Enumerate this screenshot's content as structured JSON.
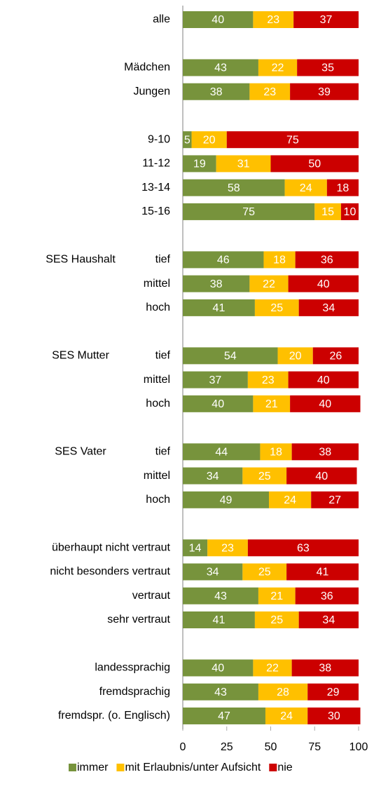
{
  "chart_data": {
    "type": "stacked_barh",
    "categories": [
      "alle",
      null,
      "Mädchen",
      "Jungen",
      null,
      "9-10",
      "11-12",
      "13-14",
      "15-16",
      null,
      "tief",
      "mittel",
      "hoch",
      null,
      "tief",
      "mittel",
      "hoch",
      null,
      "tief",
      "mittel",
      "hoch",
      null,
      "überhaupt nicht vertraut",
      "nicht besonders vertraut",
      "vertraut",
      "sehr vertraut",
      null,
      "landessprachig",
      "fremdsprachig",
      "fremdspr. (o. Englisch)"
    ],
    "group_labels": [
      null,
      null,
      null,
      null,
      null,
      null,
      null,
      null,
      null,
      null,
      "SES Haushalt",
      null,
      null,
      null,
      "SES Mutter",
      null,
      null,
      null,
      "SES Vater",
      null,
      null,
      null,
      null,
      null,
      null,
      null,
      null,
      null,
      null,
      null
    ],
    "series": [
      {
        "name": "immer",
        "color": "#77933c",
        "values": [
          40,
          null,
          43,
          38,
          null,
          5,
          19,
          58,
          75,
          null,
          46,
          38,
          41,
          null,
          54,
          37,
          40,
          null,
          44,
          34,
          49,
          null,
          14,
          34,
          43,
          41,
          null,
          40,
          43,
          47
        ]
      },
      {
        "name": "mit Erlaubnis/unter Aufsicht",
        "color": "#ffc000",
        "values": [
          23,
          null,
          22,
          23,
          null,
          20,
          31,
          24,
          15,
          null,
          18,
          22,
          25,
          null,
          20,
          23,
          21,
          null,
          18,
          25,
          24,
          null,
          23,
          25,
          21,
          25,
          null,
          22,
          28,
          24
        ]
      },
      {
        "name": "nie",
        "color": "#cc0000",
        "values": [
          37,
          null,
          35,
          39,
          null,
          75,
          50,
          18,
          10,
          null,
          36,
          40,
          34,
          null,
          26,
          40,
          40,
          null,
          38,
          40,
          27,
          null,
          63,
          41,
          36,
          34,
          null,
          38,
          29,
          30
        ]
      }
    ],
    "xlim": [
      0,
      100
    ],
    "xticks": [
      0,
      25,
      50,
      75,
      100
    ],
    "legend": "bottom"
  }
}
